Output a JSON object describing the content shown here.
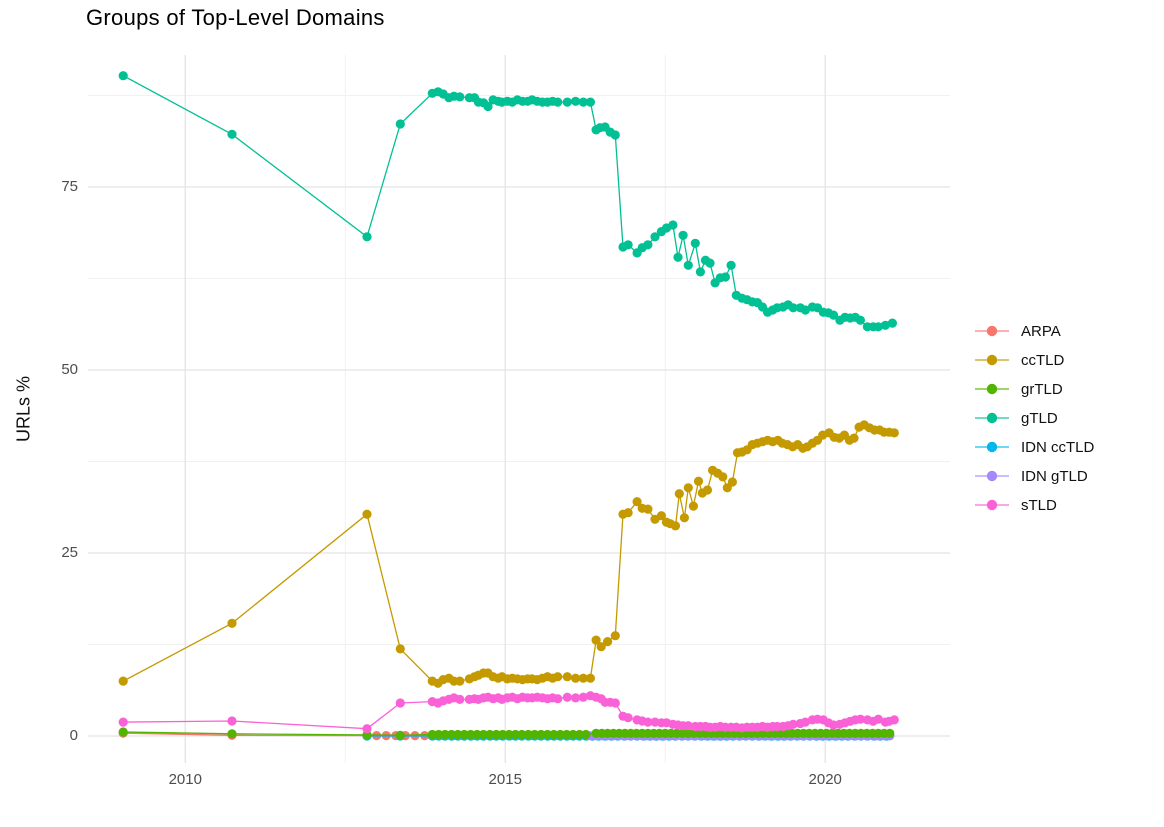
{
  "chart_data": {
    "type": "line",
    "title": "Groups of Top-Level Domains",
    "xlabel": "",
    "ylabel": "URLs %",
    "xlim": [
      2008.48,
      2021.95
    ],
    "ylim": [
      -3.69,
      93.03
    ],
    "legend_position": "right",
    "grid": true,
    "theme": {
      "background": "#ffffff",
      "grid_major": "#e4e4e4",
      "grid_minor": "#f1f1f1",
      "tick_text": "#4d4d4d",
      "title_text": "#000000"
    },
    "axes": {
      "x_ticks": [
        {
          "value": 2010,
          "label": "2010"
        },
        {
          "value": 2015,
          "label": "2015"
        },
        {
          "value": 2020,
          "label": "2020"
        }
      ],
      "x_minor": [
        2012.5,
        2017.5
      ],
      "y_ticks": [
        {
          "value": 0,
          "label": "0"
        },
        {
          "value": 25,
          "label": "25"
        },
        {
          "value": 50,
          "label": "50"
        },
        {
          "value": 75,
          "label": "75"
        }
      ],
      "y_minor": [
        12.5,
        37.5,
        62.5,
        87.5
      ]
    },
    "draw_order": [
      "ARPA",
      "IDN ccTLD",
      "IDN gTLD",
      "grTLD",
      "ccTLD",
      "gTLD",
      "sTLD"
    ],
    "series": [
      {
        "name": "ARPA",
        "color": "#F8766D",
        "points": [
          [
            2009.03,
            0.4
          ],
          [
            2010.73,
            0.1
          ]
        ],
        "dense": [
          {
            "start": 2012.84,
            "end": 2021.05,
            "step": 0.15,
            "constant": 0.05
          }
        ]
      },
      {
        "name": "ccTLD",
        "color": "#C49A00",
        "points": [
          [
            2009.03,
            7.5
          ],
          [
            2010.73,
            15.4
          ],
          [
            2012.84,
            30.3
          ],
          [
            2013.36,
            11.9
          ],
          [
            2013.86,
            7.5
          ],
          [
            2013.95,
            7.2
          ],
          [
            2014.03,
            7.7
          ],
          [
            2014.12,
            7.9
          ],
          [
            2014.2,
            7.5
          ],
          [
            2014.29,
            7.5
          ],
          [
            2014.44,
            7.8
          ],
          [
            2014.52,
            8.1
          ],
          [
            2014.58,
            8.3
          ],
          [
            2014.66,
            8.6
          ],
          [
            2014.73,
            8.6
          ],
          [
            2014.81,
            8.1
          ],
          [
            2014.89,
            7.9
          ],
          [
            2014.95,
            8.1
          ],
          [
            2015.03,
            7.8
          ],
          [
            2015.11,
            7.9
          ],
          [
            2015.19,
            7.8
          ],
          [
            2015.27,
            7.7
          ],
          [
            2015.35,
            7.8
          ],
          [
            2015.42,
            7.8
          ],
          [
            2015.5,
            7.7
          ],
          [
            2015.58,
            7.9
          ],
          [
            2015.66,
            8.1
          ],
          [
            2015.74,
            7.9
          ],
          [
            2015.82,
            8.1
          ],
          [
            2015.97,
            8.1
          ],
          [
            2016.1,
            7.9
          ],
          [
            2016.22,
            7.9
          ],
          [
            2016.33,
            7.9
          ],
          [
            2016.42,
            13.1
          ],
          [
            2016.5,
            12.2
          ],
          [
            2016.6,
            12.9
          ],
          [
            2016.72,
            13.7
          ],
          [
            2016.84,
            30.3
          ],
          [
            2016.92,
            30.5
          ],
          [
            2017.06,
            32.0
          ],
          [
            2017.14,
            31.1
          ],
          [
            2017.23,
            31.0
          ],
          [
            2017.34,
            29.6
          ],
          [
            2017.44,
            30.1
          ],
          [
            2017.52,
            29.2
          ],
          [
            2017.58,
            29.0
          ],
          [
            2017.66,
            28.7
          ],
          [
            2017.72,
            33.1
          ],
          [
            2017.8,
            29.8
          ],
          [
            2017.86,
            33.9
          ],
          [
            2017.94,
            31.4
          ],
          [
            2018.02,
            34.8
          ],
          [
            2018.08,
            33.2
          ],
          [
            2018.16,
            33.6
          ],
          [
            2018.24,
            36.3
          ],
          [
            2018.32,
            35.9
          ],
          [
            2018.4,
            35.4
          ],
          [
            2018.47,
            33.9
          ],
          [
            2018.55,
            34.7
          ],
          [
            2018.63,
            38.7
          ],
          [
            2018.7,
            38.8
          ],
          [
            2018.78,
            39.1
          ],
          [
            2018.86,
            39.8
          ],
          [
            2018.94,
            40.0
          ],
          [
            2019.02,
            40.2
          ],
          [
            2019.1,
            40.4
          ],
          [
            2019.18,
            40.2
          ],
          [
            2019.26,
            40.4
          ],
          [
            2019.33,
            40.0
          ],
          [
            2019.41,
            39.8
          ],
          [
            2019.49,
            39.5
          ],
          [
            2019.57,
            39.8
          ],
          [
            2019.65,
            39.3
          ],
          [
            2019.72,
            39.5
          ],
          [
            2019.8,
            40.0
          ],
          [
            2019.88,
            40.4
          ],
          [
            2019.96,
            41.1
          ],
          [
            2020.06,
            41.4
          ],
          [
            2020.14,
            40.8
          ],
          [
            2020.22,
            40.7
          ],
          [
            2020.3,
            41.1
          ],
          [
            2020.38,
            40.4
          ],
          [
            2020.45,
            40.7
          ],
          [
            2020.53,
            42.2
          ],
          [
            2020.61,
            42.5
          ],
          [
            2020.69,
            42.1
          ],
          [
            2020.77,
            41.8
          ],
          [
            2020.85,
            41.8
          ],
          [
            2020.92,
            41.5
          ],
          [
            2021.0,
            41.5
          ],
          [
            2021.08,
            41.4
          ]
        ]
      },
      {
        "name": "grTLD",
        "color": "#53B400",
        "points": [
          [
            2009.03,
            0.55
          ],
          [
            2010.73,
            0.3
          ],
          [
            2012.84,
            0.15
          ],
          [
            2013.36,
            0.1
          ]
        ],
        "dense": [
          {
            "start": 2013.86,
            "end": 2016.33,
            "step": 0.1,
            "constant": 0.2
          },
          {
            "start": 2016.42,
            "end": 2021.08,
            "step": 0.09,
            "constant": 0.35
          }
        ]
      },
      {
        "name": "gTLD",
        "color": "#00C094",
        "points": [
          [
            2009.03,
            90.2
          ],
          [
            2010.73,
            82.2
          ],
          [
            2012.84,
            68.2
          ],
          [
            2013.36,
            83.6
          ],
          [
            2013.86,
            87.8
          ],
          [
            2013.95,
            88.0
          ],
          [
            2014.03,
            87.7
          ],
          [
            2014.12,
            87.2
          ],
          [
            2014.2,
            87.4
          ],
          [
            2014.29,
            87.3
          ],
          [
            2014.44,
            87.2
          ],
          [
            2014.52,
            87.2
          ],
          [
            2014.58,
            86.6
          ],
          [
            2014.66,
            86.5
          ],
          [
            2014.73,
            86.0
          ],
          [
            2014.81,
            86.9
          ],
          [
            2014.89,
            86.7
          ],
          [
            2014.95,
            86.6
          ],
          [
            2015.03,
            86.7
          ],
          [
            2015.11,
            86.6
          ],
          [
            2015.19,
            86.9
          ],
          [
            2015.27,
            86.7
          ],
          [
            2015.35,
            86.7
          ],
          [
            2015.42,
            86.9
          ],
          [
            2015.5,
            86.7
          ],
          [
            2015.58,
            86.6
          ],
          [
            2015.66,
            86.6
          ],
          [
            2015.74,
            86.7
          ],
          [
            2015.82,
            86.6
          ],
          [
            2015.97,
            86.6
          ],
          [
            2016.1,
            86.7
          ],
          [
            2016.22,
            86.6
          ],
          [
            2016.33,
            86.6
          ],
          [
            2016.42,
            82.8
          ],
          [
            2016.48,
            83.1
          ],
          [
            2016.56,
            83.2
          ],
          [
            2016.64,
            82.5
          ],
          [
            2016.72,
            82.1
          ],
          [
            2016.84,
            66.8
          ],
          [
            2016.92,
            67.1
          ],
          [
            2017.06,
            66.0
          ],
          [
            2017.14,
            66.7
          ],
          [
            2017.23,
            67.1
          ],
          [
            2017.34,
            68.2
          ],
          [
            2017.44,
            68.9
          ],
          [
            2017.52,
            69.4
          ],
          [
            2017.62,
            69.8
          ],
          [
            2017.7,
            65.4
          ],
          [
            2017.78,
            68.4
          ],
          [
            2017.86,
            64.3
          ],
          [
            2017.97,
            67.3
          ],
          [
            2018.05,
            63.4
          ],
          [
            2018.13,
            65.0
          ],
          [
            2018.2,
            64.6
          ],
          [
            2018.28,
            61.9
          ],
          [
            2018.36,
            62.6
          ],
          [
            2018.44,
            62.7
          ],
          [
            2018.53,
            64.3
          ],
          [
            2018.61,
            60.2
          ],
          [
            2018.7,
            59.8
          ],
          [
            2018.78,
            59.6
          ],
          [
            2018.86,
            59.3
          ],
          [
            2018.94,
            59.2
          ],
          [
            2019.02,
            58.6
          ],
          [
            2019.1,
            57.9
          ],
          [
            2019.18,
            58.2
          ],
          [
            2019.25,
            58.5
          ],
          [
            2019.34,
            58.6
          ],
          [
            2019.42,
            58.9
          ],
          [
            2019.5,
            58.5
          ],
          [
            2019.61,
            58.5
          ],
          [
            2019.69,
            58.2
          ],
          [
            2019.8,
            58.6
          ],
          [
            2019.88,
            58.5
          ],
          [
            2019.97,
            57.9
          ],
          [
            2020.05,
            57.8
          ],
          [
            2020.13,
            57.5
          ],
          [
            2020.23,
            56.8
          ],
          [
            2020.31,
            57.2
          ],
          [
            2020.39,
            57.1
          ],
          [
            2020.47,
            57.2
          ],
          [
            2020.55,
            56.8
          ],
          [
            2020.66,
            55.9
          ],
          [
            2020.75,
            55.9
          ],
          [
            2020.83,
            55.9
          ],
          [
            2020.94,
            56.1
          ],
          [
            2021.05,
            56.4
          ]
        ]
      },
      {
        "name": "IDN ccTLD",
        "color": "#00B6EB",
        "points": [
          [
            2012.84,
            0.0
          ],
          [
            2013.36,
            0.0
          ]
        ],
        "dense": [
          {
            "start": 2013.86,
            "end": 2021.05,
            "step": 0.1,
            "constant": 0.0
          }
        ]
      },
      {
        "name": "IDN gTLD",
        "color": "#A58AFF",
        "points": [],
        "dense": [
          {
            "start": 2016.33,
            "end": 2021.08,
            "step": 0.09,
            "constant": 0.02
          }
        ]
      },
      {
        "name": "sTLD",
        "color": "#FB61D7",
        "points": [
          [
            2009.03,
            1.9
          ],
          [
            2010.73,
            2.05
          ],
          [
            2012.84,
            1.0
          ],
          [
            2013.36,
            4.5
          ],
          [
            2013.86,
            4.7
          ],
          [
            2013.95,
            4.5
          ],
          [
            2014.03,
            4.8
          ],
          [
            2014.12,
            5.0
          ],
          [
            2014.2,
            5.2
          ],
          [
            2014.29,
            5.0
          ],
          [
            2014.44,
            5.0
          ],
          [
            2014.52,
            5.1
          ],
          [
            2014.58,
            5.0
          ],
          [
            2014.66,
            5.2
          ],
          [
            2014.73,
            5.3
          ],
          [
            2014.81,
            5.1
          ],
          [
            2014.89,
            5.2
          ],
          [
            2014.95,
            5.0
          ],
          [
            2015.03,
            5.2
          ],
          [
            2015.11,
            5.3
          ],
          [
            2015.19,
            5.1
          ],
          [
            2015.27,
            5.3
          ],
          [
            2015.35,
            5.2
          ],
          [
            2015.42,
            5.2
          ],
          [
            2015.5,
            5.3
          ],
          [
            2015.58,
            5.2
          ],
          [
            2015.66,
            5.1
          ],
          [
            2015.74,
            5.2
          ],
          [
            2015.82,
            5.1
          ],
          [
            2015.97,
            5.3
          ],
          [
            2016.1,
            5.2
          ],
          [
            2016.22,
            5.3
          ],
          [
            2016.33,
            5.5
          ],
          [
            2016.42,
            5.3
          ],
          [
            2016.5,
            5.1
          ],
          [
            2016.56,
            4.6
          ],
          [
            2016.64,
            4.6
          ],
          [
            2016.72,
            4.5
          ],
          [
            2016.84,
            2.7
          ],
          [
            2016.92,
            2.5
          ],
          [
            2017.06,
            2.2
          ],
          [
            2017.14,
            2.05
          ],
          [
            2017.23,
            1.9
          ],
          [
            2017.34,
            1.9
          ],
          [
            2017.44,
            1.8
          ],
          [
            2017.52,
            1.8
          ],
          [
            2017.62,
            1.6
          ],
          [
            2017.7,
            1.5
          ],
          [
            2017.78,
            1.4
          ],
          [
            2017.86,
            1.4
          ],
          [
            2017.97,
            1.3
          ],
          [
            2018.05,
            1.3
          ],
          [
            2018.13,
            1.3
          ],
          [
            2018.2,
            1.2
          ],
          [
            2018.28,
            1.2
          ],
          [
            2018.36,
            1.3
          ],
          [
            2018.44,
            1.2
          ],
          [
            2018.53,
            1.2
          ],
          [
            2018.61,
            1.2
          ],
          [
            2018.7,
            1.1
          ],
          [
            2018.78,
            1.2
          ],
          [
            2018.86,
            1.2
          ],
          [
            2018.94,
            1.2
          ],
          [
            2019.02,
            1.3
          ],
          [
            2019.1,
            1.2
          ],
          [
            2019.18,
            1.3
          ],
          [
            2019.25,
            1.3
          ],
          [
            2019.34,
            1.3
          ],
          [
            2019.42,
            1.4
          ],
          [
            2019.5,
            1.6
          ],
          [
            2019.61,
            1.7
          ],
          [
            2019.69,
            1.9
          ],
          [
            2019.8,
            2.2
          ],
          [
            2019.88,
            2.3
          ],
          [
            2019.97,
            2.2
          ],
          [
            2020.05,
            1.8
          ],
          [
            2020.13,
            1.5
          ],
          [
            2020.23,
            1.6
          ],
          [
            2020.31,
            1.8
          ],
          [
            2020.39,
            2.0
          ],
          [
            2020.47,
            2.2
          ],
          [
            2020.55,
            2.3
          ],
          [
            2020.66,
            2.2
          ],
          [
            2020.75,
            2.0
          ],
          [
            2020.83,
            2.3
          ],
          [
            2020.94,
            1.9
          ],
          [
            2021.0,
            2.0
          ],
          [
            2021.08,
            2.2
          ]
        ]
      }
    ]
  }
}
